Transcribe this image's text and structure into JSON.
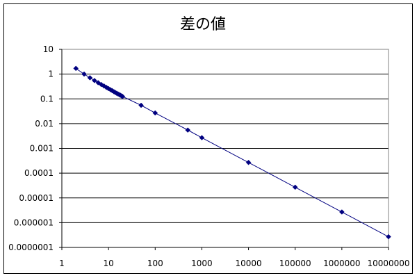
{
  "chart_data": {
    "type": "scatter",
    "title": "差の値",
    "xlabel": "",
    "ylabel": "",
    "x_scale": "log",
    "y_scale": "log",
    "xlim": [
      1,
      10000000
    ],
    "ylim": [
      1e-07,
      10
    ],
    "x_tick_labels": [
      "1",
      "10",
      "100",
      "1000",
      "10000",
      "100000",
      "1000000",
      "10000000"
    ],
    "y_tick_labels": [
      "10",
      "1",
      "0.1",
      "0.01",
      "0.001",
      "0.0001",
      "0.00001",
      "0.000001",
      "0.0000001"
    ],
    "grid": "horizontal",
    "legend": "none",
    "series": [
      {
        "color": "#000080",
        "marker": "diamond",
        "line": true,
        "x": [
          2,
          3,
          4,
          5,
          6,
          7,
          8,
          9,
          10,
          11,
          12,
          13,
          14,
          15,
          16,
          17,
          18,
          19,
          20,
          50,
          100,
          500,
          1000,
          10000,
          100000,
          1000000,
          10000000
        ],
        "y": [
          1.7,
          1.0,
          0.71,
          0.55,
          0.45,
          0.38,
          0.33,
          0.29,
          0.26,
          0.235,
          0.215,
          0.195,
          0.18,
          0.168,
          0.158,
          0.148,
          0.14,
          0.132,
          0.125,
          0.055,
          0.027,
          0.0055,
          0.0027,
          0.00027,
          2.7e-05,
          2.7e-06,
          2.7e-07
        ]
      }
    ]
  }
}
